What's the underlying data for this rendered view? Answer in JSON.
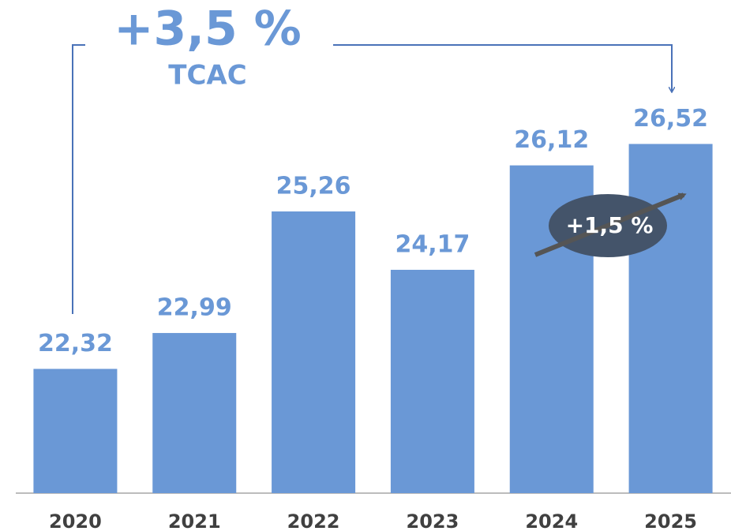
{
  "chart_data": {
    "type": "bar",
    "categories": [
      "2020",
      "2021",
      "2022",
      "2023",
      "2024",
      "2025"
    ],
    "values": [
      22.32,
      22.99,
      25.26,
      24.17,
      26.12,
      26.52
    ],
    "value_labels": [
      "22,32",
      "22,99",
      "25,26",
      "24,17",
      "26,12",
      "26,52"
    ],
    "color": "#6a98d6",
    "ylim": [
      20,
      28
    ],
    "annotations": [
      "+3,5 %",
      "TCAC",
      "+1,5 %"
    ]
  }
}
